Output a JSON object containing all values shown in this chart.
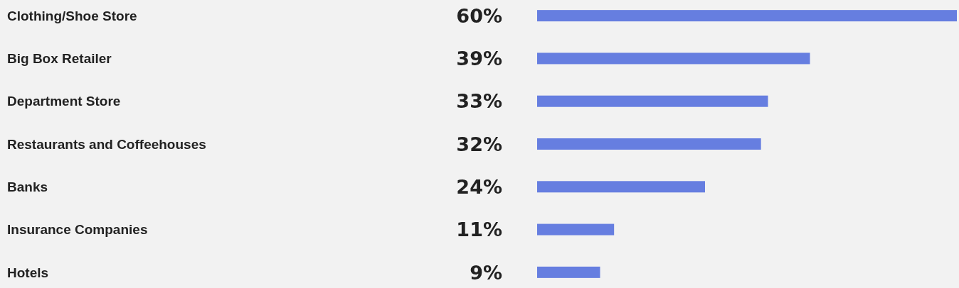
{
  "chart_data": {
    "type": "bar",
    "orientation": "horizontal",
    "categories": [
      "Clothing/Shoe Store",
      "Big Box Retailer",
      "Department Store",
      "Restaurants and Coffeehouses",
      "Banks",
      "Insurance Companies",
      "Hotels"
    ],
    "values": [
      60,
      39,
      33,
      32,
      24,
      11,
      9
    ],
    "value_labels": [
      "60%",
      "39%",
      "33%",
      "32%",
      "24%",
      "11%",
      "9%"
    ],
    "color": "#667ee0"
  }
}
